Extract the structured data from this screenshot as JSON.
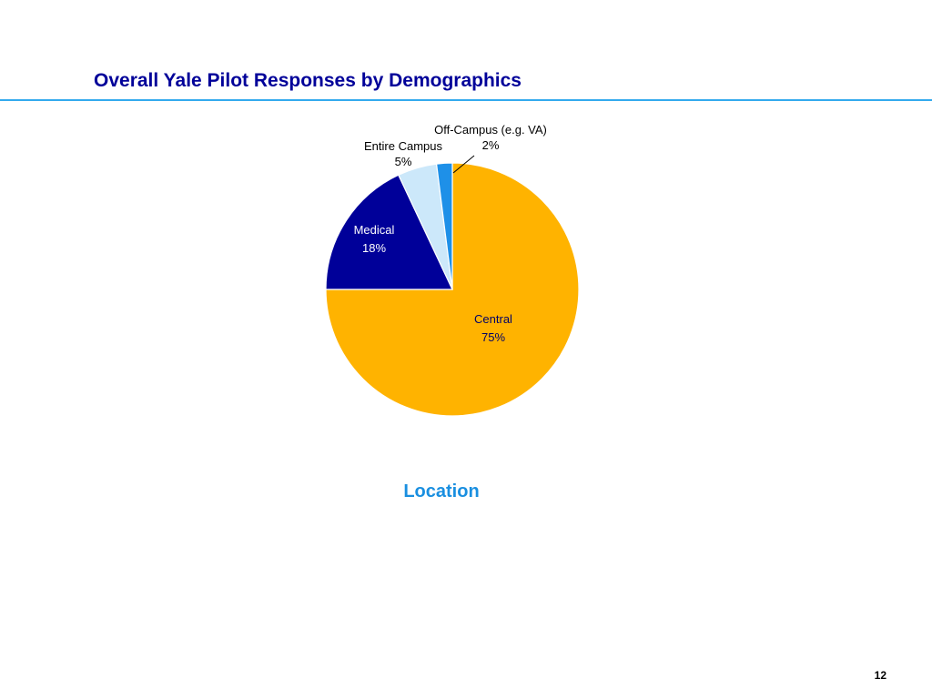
{
  "slide": {
    "title": "Overall Yale Pilot Responses by Demographics",
    "page_number": "12",
    "title_color": "#000099",
    "rule_color": "#33aaee"
  },
  "chart_data": {
    "type": "pie",
    "caption": "Location",
    "caption_color": "#1a8fe0",
    "slices": [
      {
        "label": "Central",
        "value": 75,
        "value_label": "75%",
        "color": "#FFB300",
        "label_color": "#000066"
      },
      {
        "label": "Medical",
        "value": 18,
        "value_label": "18%",
        "color": "#000099",
        "label_color": "#ffffff"
      },
      {
        "label": "Entire Campus",
        "value": 5,
        "value_label": "5%",
        "color": "#CCE8FA",
        "label_color": "#000000"
      },
      {
        "label": "Off-Campus (e.g. VA)",
        "value": 2,
        "value_label": "2%",
        "color": "#1E90E8",
        "label_color": "#000000",
        "leader_line": true
      }
    ]
  }
}
